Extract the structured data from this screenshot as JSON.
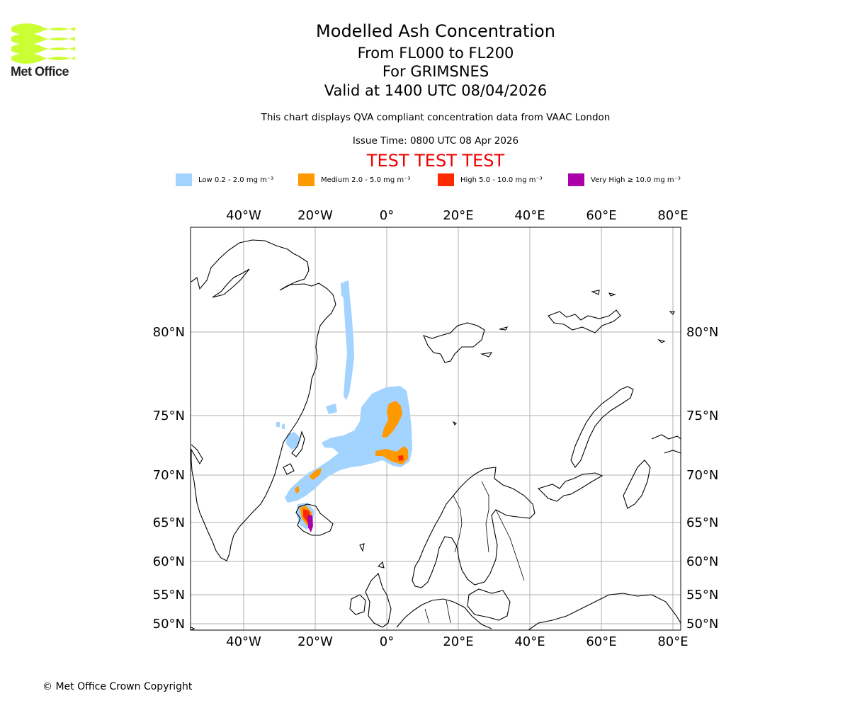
{
  "logo": {
    "name": "Met Office"
  },
  "titles": {
    "main": "Modelled Ash Concentration",
    "levels": "From FL000 to FL200",
    "volcano": "For GRIMSNES",
    "valid": "Valid at 1400 UTC 08/04/2026",
    "compliance": "This chart displays QVA compliant concentration data from VAAC London",
    "issue": "Issue Time: 0800 UTC 08 Apr 2026",
    "test": "TEST TEST TEST"
  },
  "legend": [
    {
      "label": "Low 0.2 - 2.0 mg m⁻³",
      "color": "#a3d3ff"
    },
    {
      "label": "Medium 2.0 - 5.0 mg m⁻³",
      "color": "#ff9900"
    },
    {
      "label": "High 5.0 - 10.0 mg m⁻³",
      "color": "#ff2a00"
    },
    {
      "label": "Very High ≥ 10.0 mg m⁻³",
      "color": "#aa00aa"
    }
  ],
  "map": {
    "lon_ticks": [
      "40°W",
      "20°W",
      "0°",
      "20°E",
      "40°E",
      "60°E",
      "80°E"
    ],
    "lat_ticks": [
      "80°N",
      "75°N",
      "70°N",
      "65°N",
      "60°N",
      "55°N",
      "50°N"
    ]
  },
  "footer": {
    "copyright": "© Met Office Crown Copyright"
  }
}
